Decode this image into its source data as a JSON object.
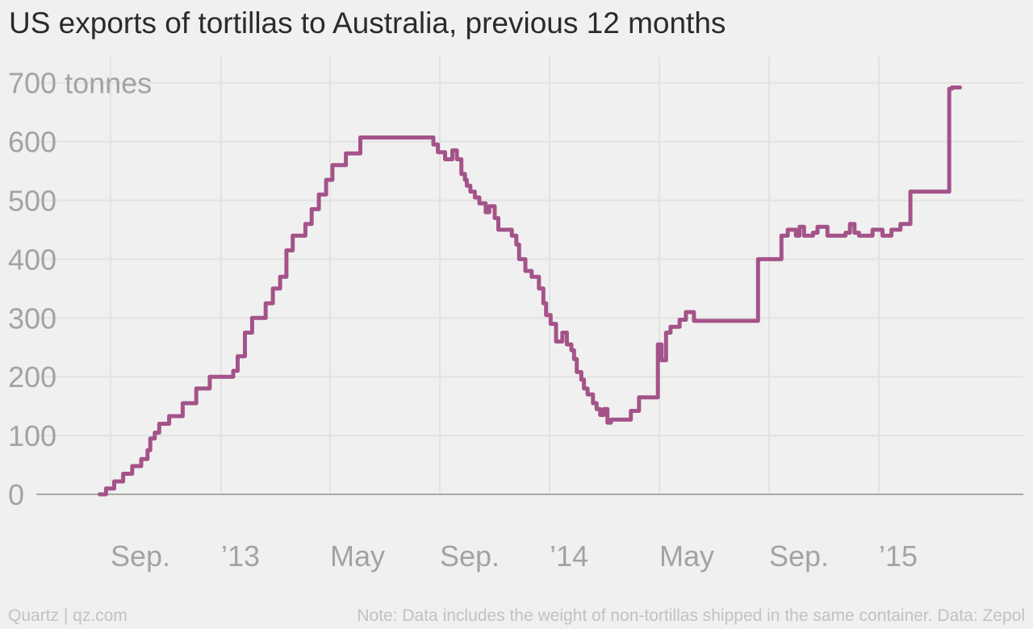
{
  "chart_data": {
    "type": "line",
    "title": "US exports of tortillas to Australia, previous 12 months",
    "y_unit_label": "tonnes",
    "ylim": [
      0,
      700
    ],
    "y_ticks": [
      0,
      100,
      200,
      300,
      400,
      500,
      600,
      700
    ],
    "y_tick_labels": [
      "0",
      "100",
      "200",
      "300",
      "400",
      "500",
      "600",
      "700 tonnes"
    ],
    "x_tick_labels": [
      "Sep.",
      "’13",
      "May",
      "Sep.",
      "’14",
      "May",
      "Sep.",
      "’15"
    ],
    "grid": true,
    "line_color": "#a45389",
    "series": [
      {
        "step": true,
        "x": [
          "2012-08-20",
          "2012-08-27",
          "2012-09-05",
          "2012-09-15",
          "2012-09-25",
          "2012-10-05",
          "2012-10-12",
          "2012-10-15",
          "2012-10-20",
          "2012-10-25",
          "2012-11-05",
          "2012-11-20",
          "2012-12-05",
          "2012-12-20",
          "2013-01-15",
          "2013-01-20",
          "2013-01-28",
          "2013-02-05",
          "2013-02-20",
          "2013-02-28",
          "2013-03-08",
          "2013-03-15",
          "2013-03-22",
          "2013-04-05",
          "2013-04-12",
          "2013-04-20",
          "2013-04-28",
          "2013-05-05",
          "2013-05-20",
          "2013-06-05",
          "2013-06-25",
          "2013-08-25",
          "2013-08-30",
          "2013-09-07",
          "2013-09-15",
          "2013-09-20",
          "2013-09-25",
          "2013-09-29",
          "2013-10-01",
          "2013-10-05",
          "2013-10-10",
          "2013-10-15",
          "2013-10-22",
          "2013-10-26",
          "2013-11-01",
          "2013-11-05",
          "2013-11-20",
          "2013-11-25",
          "2013-11-28",
          "2013-12-05",
          "2013-12-12",
          "2013-12-20",
          "2013-12-25",
          "2013-12-28",
          "2014-01-02",
          "2014-01-08",
          "2014-01-15",
          "2014-01-20",
          "2014-01-25",
          "2014-01-28",
          "2014-01-31",
          "2014-02-05",
          "2014-02-08",
          "2014-02-12",
          "2014-02-18",
          "2014-02-22",
          "2014-02-26",
          "2014-03-02",
          "2014-03-06",
          "2014-03-10",
          "2014-03-16",
          "2014-03-20",
          "2014-03-25",
          "2014-04-01",
          "2014-04-10",
          "2014-04-15",
          "2014-05-01",
          "2014-05-05",
          "2014-05-10",
          "2014-05-15",
          "2014-05-25",
          "2014-06-01",
          "2014-06-10",
          "2014-08-20",
          "2014-09-15",
          "2014-09-22",
          "2014-10-01",
          "2014-10-05",
          "2014-10-10",
          "2014-10-20",
          "2014-10-25",
          "2014-11-05",
          "2014-11-25",
          "2014-11-30",
          "2014-12-05",
          "2014-12-10",
          "2014-12-25",
          "2015-01-05",
          "2015-01-15",
          "2015-01-25",
          "2015-02-05",
          "2015-02-08",
          "2015-02-12",
          "2015-02-17",
          "2015-02-23",
          "2015-03-05",
          "2015-03-12",
          "2015-03-20",
          "2015-03-23"
        ],
        "y": [
          0,
          10,
          22,
          35,
          48,
          60,
          75,
          95,
          105,
          120,
          133,
          155,
          180,
          200,
          210,
          235,
          275,
          300,
          325,
          350,
          370,
          415,
          440,
          460,
          485,
          510,
          535,
          560,
          580,
          607,
          607,
          595,
          582,
          570,
          585,
          570,
          545,
          535,
          525,
          515,
          505,
          495,
          480,
          490,
          470,
          450,
          440,
          425,
          400,
          380,
          370,
          350,
          325,
          305,
          290,
          260,
          275,
          255,
          245,
          230,
          208,
          195,
          180,
          170,
          155,
          145,
          135,
          145,
          122,
          127,
          127,
          127,
          127,
          142,
          165,
          165,
          255,
          228,
          275,
          285,
          297,
          310,
          295,
          400,
          440,
          450,
          440,
          455,
          440,
          445,
          455,
          440,
          445,
          460,
          445,
          440,
          450,
          440,
          450,
          460,
          515,
          515,
          515,
          515,
          515,
          515,
          515,
          690,
          692
        ]
      }
    ],
    "footer_left": "Quartz | qz.com",
    "footer_right": "Note: Data includes the weight of non-tortillas shipped in the same container. Data: Zepol"
  }
}
